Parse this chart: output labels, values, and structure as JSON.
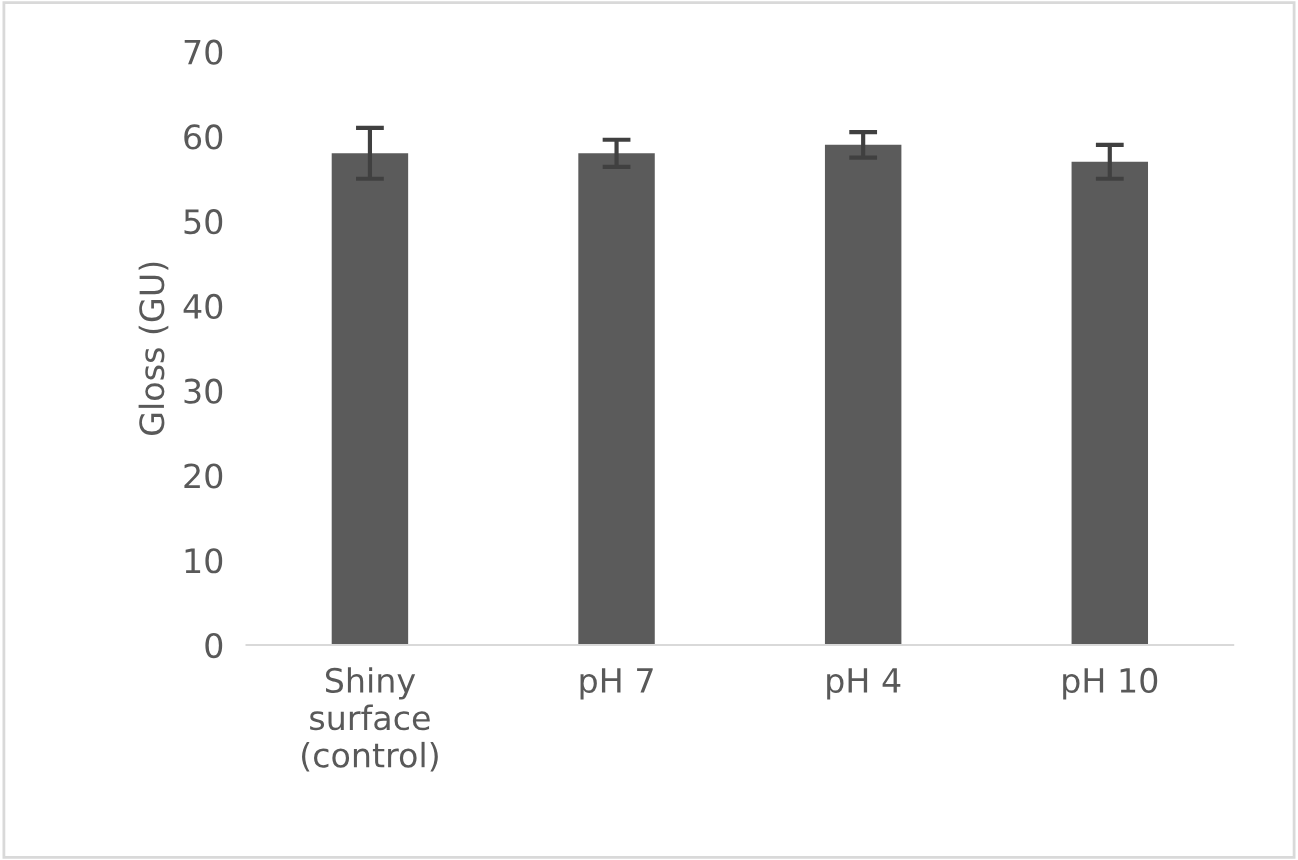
{
  "chart_data": {
    "type": "bar",
    "ylabel": "Gloss (GU)",
    "categories": [
      "Shiny\nsurface\n(control)",
      "pH 7",
      "pH 4",
      "pH 10"
    ],
    "values": [
      58,
      58,
      59,
      57
    ],
    "errors": [
      3,
      1.6,
      1.5,
      2
    ],
    "color": "#5b5b5b",
    "ylim": [
      0,
      70
    ],
    "yticks": [
      0,
      10,
      20,
      30,
      40,
      50,
      60,
      70
    ],
    "grid": false
  }
}
